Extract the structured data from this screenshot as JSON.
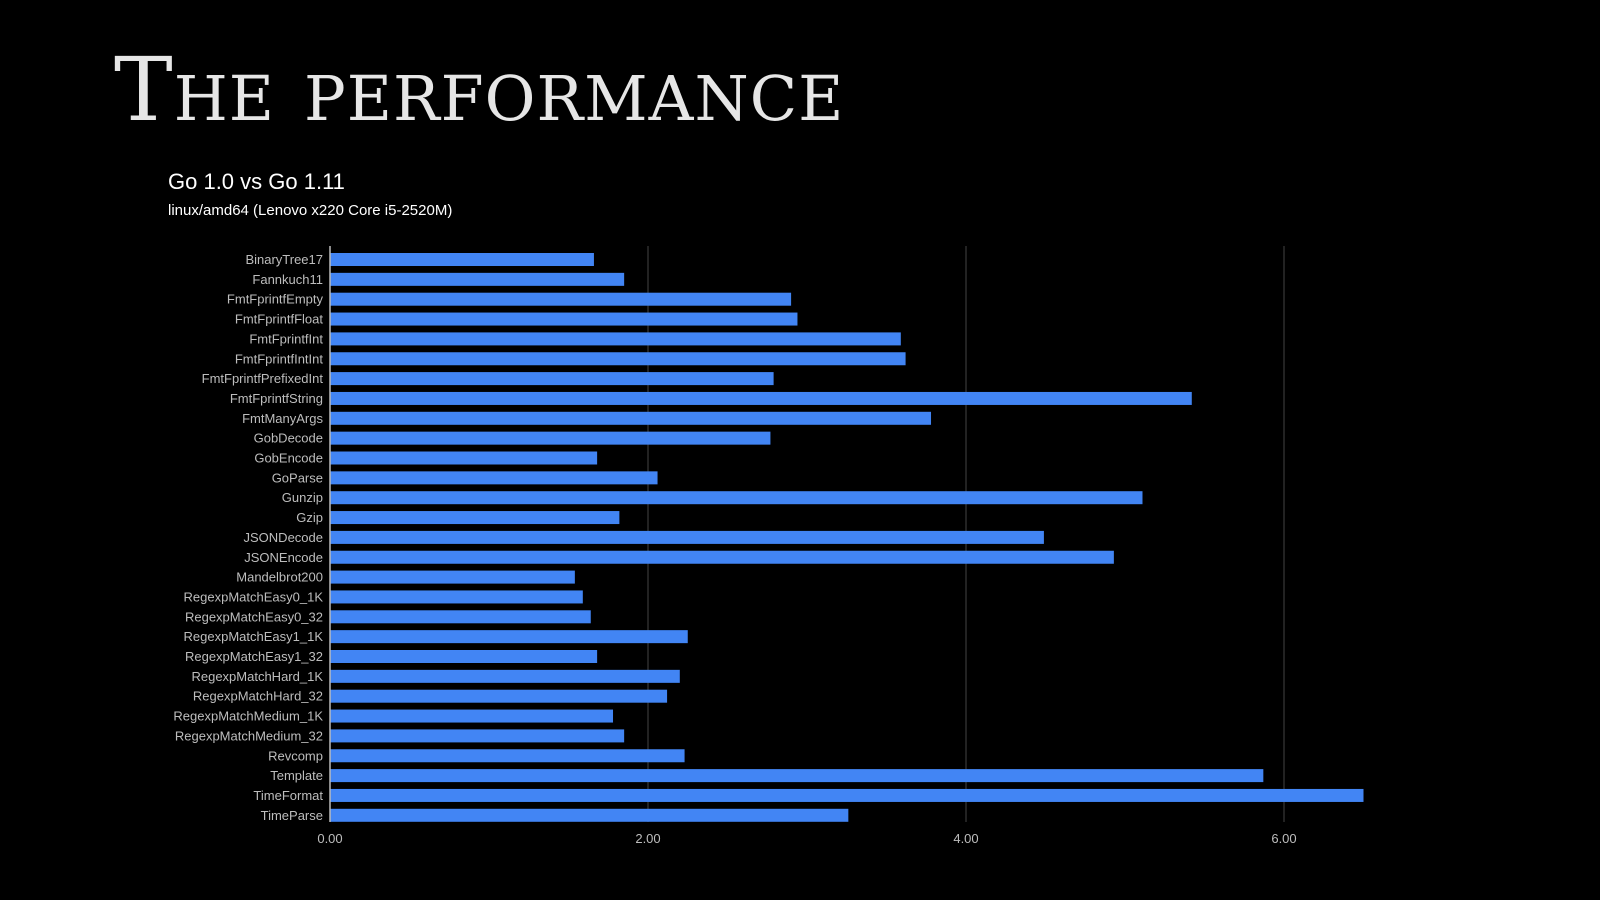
{
  "slide": {
    "title": "The performance"
  },
  "colors": {
    "background": "#000000",
    "bar": "#4285f4",
    "gridline": "#444444",
    "axis": "#bbbbbb",
    "label": "#bdbdbd"
  },
  "chart_data": {
    "type": "bar",
    "orientation": "horizontal",
    "title": "Go 1.0 vs Go 1.11",
    "subtitle": "linux/amd64 (Lenovo x220 Core i5-2520M)",
    "xlabel": "",
    "ylabel": "",
    "xlim": [
      0,
      7.0
    ],
    "xticks": [
      0,
      2,
      4,
      6
    ],
    "xtick_labels": [
      "0.00",
      "2.00",
      "4.00",
      "6.00"
    ],
    "grid": true,
    "legend": "none",
    "categories": [
      "BinaryTree17",
      "Fannkuch11",
      "FmtFprintfEmpty",
      "FmtFprintfFloat",
      "FmtFprintfInt",
      "FmtFprintfIntInt",
      "FmtFprintfPrefixedInt",
      "FmtFprintfString",
      "FmtManyArgs",
      "GobDecode",
      "GobEncode",
      "GoParse",
      "Gunzip",
      "Gzip",
      "JSONDecode",
      "JSONEncode",
      "Mandelbrot200",
      "RegexpMatchEasy0_1K",
      "RegexpMatchEasy0_32",
      "RegexpMatchEasy1_1K",
      "RegexpMatchEasy1_32",
      "RegexpMatchHard_1K",
      "RegexpMatchHard_32",
      "RegexpMatchMedium_1K",
      "RegexpMatchMedium_32",
      "Revcomp",
      "Template",
      "TimeFormat",
      "TimeParse"
    ],
    "values": [
      1.66,
      1.85,
      2.9,
      2.94,
      3.59,
      3.62,
      2.79,
      5.42,
      3.78,
      2.77,
      1.68,
      2.06,
      5.11,
      1.82,
      4.49,
      4.93,
      1.54,
      1.59,
      1.64,
      2.25,
      1.68,
      2.2,
      2.12,
      1.78,
      1.85,
      2.23,
      5.87,
      6.5,
      3.26
    ]
  }
}
